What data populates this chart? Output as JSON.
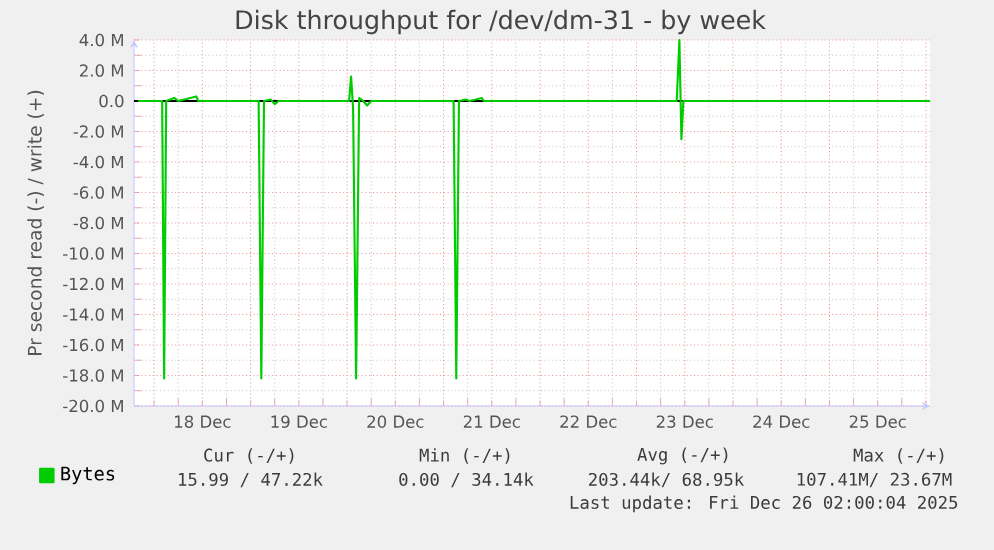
{
  "chart_data": {
    "type": "line",
    "title": "Disk throughput for /dev/dm-31 - by week",
    "ylabel": "Pr second read (-) / write (+)",
    "x": [
      "2025-12-17T20:00",
      "2025-12-18T02:00",
      "2025-12-18T02:30",
      "2025-12-18T03:00",
      "2025-12-18T05:00",
      "2025-12-18T06:00",
      "2025-12-18T10:30",
      "2025-12-18T11:00",
      "2025-12-19T02:00",
      "2025-12-19T02:40",
      "2025-12-19T03:20",
      "2025-12-19T05:00",
      "2025-12-19T06:00",
      "2025-12-19T07:00",
      "2025-12-20T00:30",
      "2025-12-20T01:00",
      "2025-12-20T01:30",
      "2025-12-20T02:15",
      "2025-12-20T03:00",
      "2025-12-20T04:00",
      "2025-12-20T05:00",
      "2025-12-20T06:00",
      "2025-12-21T02:30",
      "2025-12-21T03:10",
      "2025-12-21T03:50",
      "2025-12-21T05:30",
      "2025-12-21T06:30",
      "2025-12-21T09:30",
      "2025-12-21T10:00",
      "2025-12-23T10:00",
      "2025-12-23T10:40",
      "2025-12-23T11:10",
      "2025-12-23T11:40",
      "2025-12-26T01:00"
    ],
    "series": [
      {
        "name": "Bytes",
        "color": "#00cc00",
        "values": [
          0,
          0,
          -18.2,
          0,
          0.2,
          0,
          0.3,
          0,
          0,
          -18.2,
          0,
          0.1,
          -0.2,
          0,
          0,
          1.6,
          -0.5,
          -18.2,
          0.2,
          0,
          -0.3,
          0,
          0,
          -18.2,
          0,
          0.1,
          0,
          0.2,
          0,
          0,
          4.0,
          -2.5,
          0,
          0
        ]
      }
    ],
    "xlim": [
      "2025-12-17T19:00",
      "2025-12-26T01:00"
    ],
    "xticks": [
      {
        "value": "2025-12-18T00:00",
        "label": null
      },
      {
        "value": "2025-12-18T12:00",
        "label": "18 Dec"
      },
      {
        "value": "2025-12-19T00:00",
        "label": null
      },
      {
        "value": "2025-12-19T12:00",
        "label": "19 Dec"
      },
      {
        "value": "2025-12-20T00:00",
        "label": null
      },
      {
        "value": "2025-12-20T12:00",
        "label": "20 Dec"
      },
      {
        "value": "2025-12-21T00:00",
        "label": null
      },
      {
        "value": "2025-12-21T12:00",
        "label": "21 Dec"
      },
      {
        "value": "2025-12-22T00:00",
        "label": null
      },
      {
        "value": "2025-12-22T12:00",
        "label": "22 Dec"
      },
      {
        "value": "2025-12-23T00:00",
        "label": null
      },
      {
        "value": "2025-12-23T12:00",
        "label": "23 Dec"
      },
      {
        "value": "2025-12-24T00:00",
        "label": null
      },
      {
        "value": "2025-12-24T12:00",
        "label": "24 Dec"
      },
      {
        "value": "2025-12-25T00:00",
        "label": null
      },
      {
        "value": "2025-12-25T12:00",
        "label": "25 Dec"
      },
      {
        "value": "2025-12-26T00:00",
        "label": null
      }
    ],
    "ylim": [
      -20,
      4
    ],
    "yticks": [
      {
        "value": 4,
        "label": "4.0 M"
      },
      {
        "value": 2,
        "label": "2.0 M"
      },
      {
        "value": 0,
        "label": "0.0"
      },
      {
        "value": -2,
        "label": "-2.0 M"
      },
      {
        "value": -4,
        "label": "-4.0 M"
      },
      {
        "value": -6,
        "label": "-6.0 M"
      },
      {
        "value": -8,
        "label": "-8.0 M"
      },
      {
        "value": -10,
        "label": "-10.0 M"
      },
      {
        "value": -12,
        "label": "-12.0 M"
      },
      {
        "value": -14,
        "label": "-14.0 M"
      },
      {
        "value": -16,
        "label": "-16.0 M"
      },
      {
        "value": -18,
        "label": "-18.0 M"
      },
      {
        "value": -20,
        "label": "-20.0 M"
      }
    ],
    "ref_lines": [
      {
        "axis": "y",
        "value": 0,
        "color": "#000000"
      }
    ],
    "grid": true,
    "legend": "bottom left",
    "marker": "none",
    "line_style": "solid",
    "annotations": [
      "Cur (-/+)",
      "Min (-/+)",
      "Avg (-/+)",
      "Max (-/+)",
      "15.99 / 47.22k",
      "0.00 / 34.14k",
      "203.44k/ 68.95k",
      "107.41M/ 23.67M",
      "Last update: Fri Dec 26 02:00:04 2025"
    ]
  }
}
